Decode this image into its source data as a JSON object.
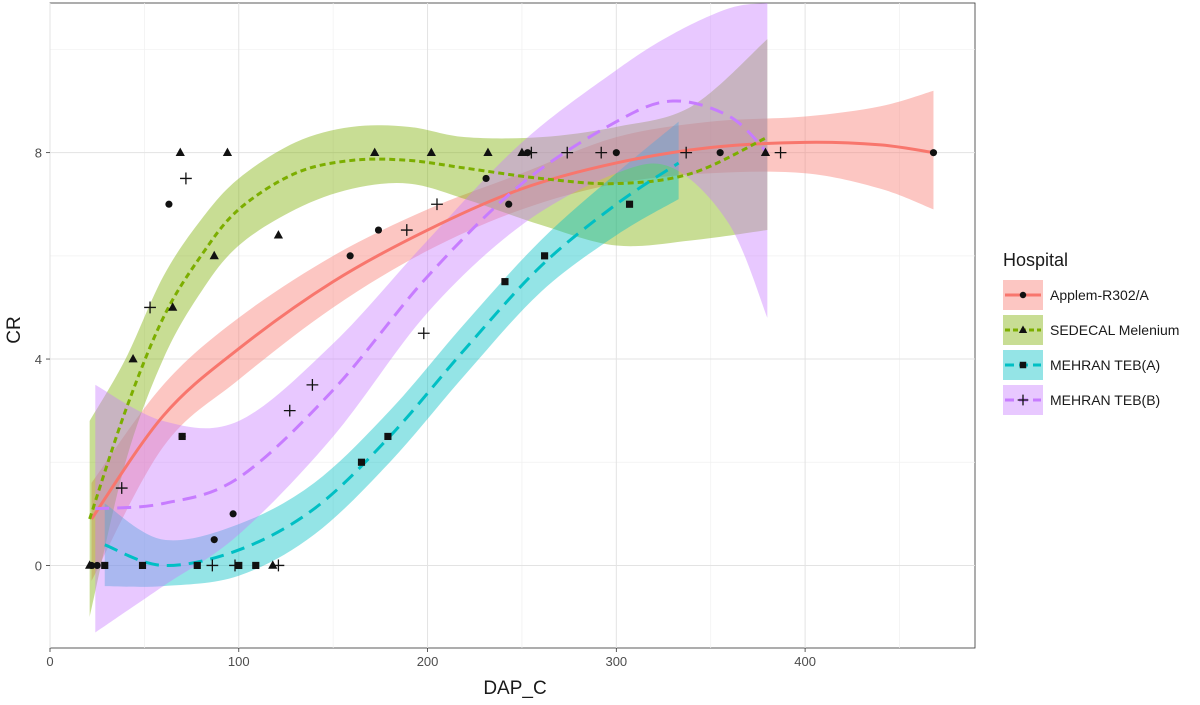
{
  "chart_data": {
    "type": "scatter",
    "xlabel": "DAP_C",
    "ylabel": "CR",
    "xlim": [
      0,
      490
    ],
    "ylim": [
      -1.6,
      10.9
    ],
    "x_ticks": [
      0,
      100,
      200,
      300,
      400
    ],
    "y_ticks": [
      0,
      4,
      8
    ],
    "grid": true,
    "legend_title": "Hospital",
    "legend_position": "right",
    "series": [
      {
        "name": "Applem-R302/A",
        "color": "#F8766D",
        "marker": "circle",
        "linestyle": "solid",
        "points": [
          [
            22,
            0
          ],
          [
            25,
            0
          ],
          [
            70,
            2.5
          ],
          [
            63,
            7
          ],
          [
            87,
            0.5
          ],
          [
            97,
            1
          ],
          [
            159,
            6
          ],
          [
            174,
            6.5
          ],
          [
            231,
            7.5
          ],
          [
            243,
            7
          ],
          [
            253,
            8
          ],
          [
            300,
            8
          ],
          [
            355,
            8
          ],
          [
            468,
            8
          ]
        ],
        "fit": [
          [
            22,
            0.9
          ],
          [
            60,
            2.9
          ],
          [
            100,
            4.2
          ],
          [
            150,
            5.5
          ],
          [
            200,
            6.5
          ],
          [
            250,
            7.3
          ],
          [
            300,
            7.8
          ],
          [
            350,
            8.1
          ],
          [
            400,
            8.2
          ],
          [
            440,
            8.15
          ],
          [
            468,
            8.0
          ]
        ],
        "band": [
          [
            22,
            -0.3,
            1.6
          ],
          [
            60,
            2.3,
            3.5
          ],
          [
            100,
            3.6,
            4.8
          ],
          [
            150,
            5.0,
            6.0
          ],
          [
            200,
            6.1,
            6.9
          ],
          [
            250,
            6.9,
            7.6
          ],
          [
            300,
            7.4,
            8.3
          ],
          [
            350,
            7.6,
            8.6
          ],
          [
            400,
            7.6,
            8.7
          ],
          [
            440,
            7.3,
            8.9
          ],
          [
            468,
            6.9,
            9.2
          ]
        ]
      },
      {
        "name": "SEDECAL Melenium",
        "color": "#7CAE00",
        "marker": "triangle",
        "linestyle": "dotted",
        "points": [
          [
            21,
            0
          ],
          [
            44,
            4
          ],
          [
            65,
            5
          ],
          [
            69,
            8
          ],
          [
            87,
            6
          ],
          [
            94,
            8
          ],
          [
            118,
            0
          ],
          [
            121,
            6.4
          ],
          [
            172,
            8
          ],
          [
            202,
            8
          ],
          [
            232,
            8
          ],
          [
            250,
            8
          ],
          [
            379,
            8
          ]
        ],
        "fit": [
          [
            21,
            0.9
          ],
          [
            40,
            3.0
          ],
          [
            60,
            4.8
          ],
          [
            80,
            6.0
          ],
          [
            100,
            6.9
          ],
          [
            130,
            7.6
          ],
          [
            160,
            7.85
          ],
          [
            190,
            7.85
          ],
          [
            220,
            7.7
          ],
          [
            260,
            7.5
          ],
          [
            300,
            7.4
          ],
          [
            340,
            7.6
          ],
          [
            380,
            8.3
          ]
        ],
        "band": [
          [
            21,
            -1.0,
            2.8
          ],
          [
            40,
            2.0,
            4.0
          ],
          [
            60,
            4.0,
            5.6
          ],
          [
            80,
            5.3,
            6.7
          ],
          [
            100,
            6.2,
            7.5
          ],
          [
            130,
            6.9,
            8.2
          ],
          [
            160,
            7.3,
            8.5
          ],
          [
            190,
            7.4,
            8.5
          ],
          [
            220,
            7.1,
            8.3
          ],
          [
            260,
            6.6,
            8.3
          ],
          [
            300,
            6.2,
            8.5
          ],
          [
            340,
            6.3,
            8.9
          ],
          [
            380,
            6.5,
            10.2
          ]
        ]
      },
      {
        "name": "MEHRAN TEB(A)",
        "color": "#00BFC4",
        "marker": "square",
        "linestyle": "dashed",
        "points": [
          [
            29,
            0
          ],
          [
            49,
            0
          ],
          [
            70,
            2.5
          ],
          [
            78,
            0
          ],
          [
            100,
            0
          ],
          [
            109,
            0
          ],
          [
            165,
            2
          ],
          [
            179,
            2.5
          ],
          [
            241,
            5.5
          ],
          [
            262,
            6
          ],
          [
            307,
            7
          ]
        ],
        "fit": [
          [
            29,
            0.4
          ],
          [
            60,
            0.0
          ],
          [
            100,
            0.3
          ],
          [
            140,
            1.1
          ],
          [
            180,
            2.5
          ],
          [
            220,
            4.2
          ],
          [
            260,
            5.8
          ],
          [
            300,
            7.0
          ],
          [
            333,
            7.8
          ]
        ],
        "band": [
          [
            29,
            -0.4,
            1.2
          ],
          [
            60,
            -0.4,
            0.5
          ],
          [
            100,
            -0.2,
            0.8
          ],
          [
            140,
            0.6,
            1.6
          ],
          [
            180,
            2.0,
            3.0
          ],
          [
            220,
            3.7,
            4.7
          ],
          [
            260,
            5.3,
            6.3
          ],
          [
            300,
            6.4,
            7.6
          ],
          [
            333,
            7.1,
            8.6
          ]
        ]
      },
      {
        "name": "MEHRAN TEB(B)",
        "color": "#C77CFF",
        "marker": "plus",
        "linestyle": "dashed",
        "points": [
          [
            38,
            1.5
          ],
          [
            53,
            5
          ],
          [
            72,
            7.5
          ],
          [
            86,
            0
          ],
          [
            127,
            3
          ],
          [
            139,
            3.5
          ],
          [
            189,
            6.5
          ],
          [
            198,
            4.5
          ],
          [
            205,
            7
          ],
          [
            255,
            8
          ],
          [
            274,
            8
          ],
          [
            292,
            8
          ],
          [
            337,
            8
          ],
          [
            387,
            8
          ],
          [
            98,
            0
          ],
          [
            121,
            0
          ]
        ],
        "fit": [
          [
            24,
            1.1
          ],
          [
            60,
            1.2
          ],
          [
            100,
            1.7
          ],
          [
            150,
            3.4
          ],
          [
            200,
            5.6
          ],
          [
            250,
            7.4
          ],
          [
            300,
            8.6
          ],
          [
            330,
            9.0
          ],
          [
            360,
            8.7
          ],
          [
            380,
            8.0
          ]
        ],
        "band": [
          [
            24,
            -1.3,
            3.5
          ],
          [
            60,
            -0.4,
            2.8
          ],
          [
            100,
            0.6,
            2.8
          ],
          [
            150,
            2.5,
            4.3
          ],
          [
            200,
            4.9,
            6.3
          ],
          [
            250,
            6.6,
            8.2
          ],
          [
            300,
            7.6,
            9.6
          ],
          [
            330,
            7.7,
            10.3
          ],
          [
            360,
            6.6,
            10.8
          ],
          [
            380,
            4.8,
            10.9
          ]
        ]
      }
    ]
  }
}
